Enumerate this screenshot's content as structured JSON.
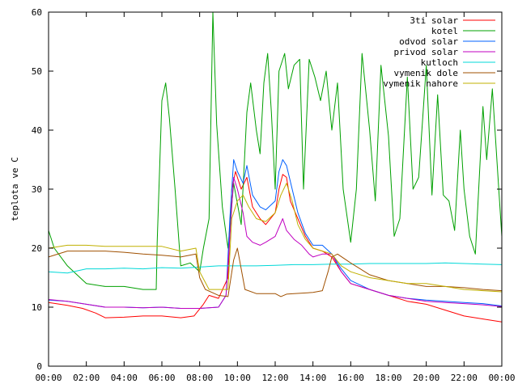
{
  "chart_data": {
    "type": "line",
    "title": "",
    "xlabel": "",
    "ylabel": "teplota ve C",
    "xlim": [
      0,
      24
    ],
    "ylim": [
      0,
      60
    ],
    "x_ticks": [
      "00:00",
      "02:00",
      "04:00",
      "06:00",
      "08:00",
      "10:00",
      "12:00",
      "14:00",
      "16:00",
      "18:00",
      "20:00",
      "22:00",
      "00:00"
    ],
    "y_ticks": [
      "0",
      "10",
      "20",
      "30",
      "40",
      "50",
      "60"
    ],
    "grid": false,
    "legend_position": "top-right",
    "series": [
      {
        "name": "3ti solar",
        "color": "#ff0000",
        "points": [
          [
            0,
            10.8
          ],
          [
            1,
            10.3
          ],
          [
            1.8,
            9.8
          ],
          [
            2.5,
            9.0
          ],
          [
            3,
            8.2
          ],
          [
            4,
            8.3
          ],
          [
            5,
            8.5
          ],
          [
            6,
            8.5
          ],
          [
            7,
            8.2
          ],
          [
            7.7,
            8.5
          ],
          [
            8.2,
            10.5
          ],
          [
            8.5,
            12.0
          ],
          [
            9,
            11.5
          ],
          [
            9.5,
            15
          ],
          [
            9.7,
            30
          ],
          [
            9.9,
            33
          ],
          [
            10.2,
            30
          ],
          [
            10.5,
            32
          ],
          [
            10.8,
            27
          ],
          [
            11.2,
            25
          ],
          [
            11.5,
            24
          ],
          [
            12,
            26
          ],
          [
            12.2,
            30
          ],
          [
            12.4,
            32.5
          ],
          [
            12.6,
            32
          ],
          [
            12.8,
            28
          ],
          [
            13.2,
            25
          ],
          [
            13.6,
            22
          ],
          [
            14,
            20
          ],
          [
            14.5,
            19.5
          ],
          [
            15,
            18.5
          ],
          [
            15.5,
            16
          ],
          [
            16,
            14
          ],
          [
            17,
            13
          ],
          [
            18,
            12
          ],
          [
            19,
            11
          ],
          [
            20,
            10.5
          ],
          [
            21,
            9.5
          ],
          [
            22,
            8.5
          ],
          [
            23,
            8
          ],
          [
            24,
            7.5
          ]
        ]
      },
      {
        "name": "kotel",
        "color": "#00a000",
        "points": [
          [
            0,
            23
          ],
          [
            0.3,
            20
          ],
          [
            1,
            17
          ],
          [
            2,
            14
          ],
          [
            3,
            13.5
          ],
          [
            4,
            13.5
          ],
          [
            5,
            13
          ],
          [
            5.7,
            13
          ],
          [
            5.75,
            21
          ],
          [
            6,
            45
          ],
          [
            6.2,
            48
          ],
          [
            6.4,
            42
          ],
          [
            6.7,
            30
          ],
          [
            7,
            17
          ],
          [
            7.5,
            17.5
          ],
          [
            8,
            16
          ],
          [
            8.2,
            20
          ],
          [
            8.5,
            25
          ],
          [
            8.7,
            60
          ],
          [
            8.9,
            41
          ],
          [
            9.2,
            27
          ],
          [
            9.5,
            20
          ],
          [
            9.8,
            31
          ],
          [
            10.2,
            24
          ],
          [
            10.5,
            43
          ],
          [
            10.7,
            48
          ],
          [
            11,
            40
          ],
          [
            11.2,
            36
          ],
          [
            11.4,
            48
          ],
          [
            11.6,
            53
          ],
          [
            11.8,
            43
          ],
          [
            12,
            30
          ],
          [
            12.2,
            50
          ],
          [
            12.5,
            53
          ],
          [
            12.7,
            47
          ],
          [
            13,
            51
          ],
          [
            13.3,
            52
          ],
          [
            13.5,
            30
          ],
          [
            13.8,
            52
          ],
          [
            14.1,
            49
          ],
          [
            14.4,
            45
          ],
          [
            14.7,
            50
          ],
          [
            15,
            40
          ],
          [
            15.3,
            48
          ],
          [
            15.6,
            30
          ],
          [
            16,
            21
          ],
          [
            16.3,
            30
          ],
          [
            16.6,
            53
          ],
          [
            17,
            40
          ],
          [
            17.3,
            28
          ],
          [
            17.6,
            51
          ],
          [
            18,
            39
          ],
          [
            18.3,
            22
          ],
          [
            18.6,
            25
          ],
          [
            19,
            49
          ],
          [
            19.3,
            30
          ],
          [
            19.6,
            32
          ],
          [
            20,
            51
          ],
          [
            20.3,
            29
          ],
          [
            20.6,
            46
          ],
          [
            20.9,
            29
          ],
          [
            21.2,
            28
          ],
          [
            21.5,
            23
          ],
          [
            21.8,
            40
          ],
          [
            22,
            30
          ],
          [
            22.3,
            22
          ],
          [
            22.6,
            19
          ],
          [
            23,
            44
          ],
          [
            23.2,
            35
          ],
          [
            23.5,
            47
          ],
          [
            23.8,
            32
          ],
          [
            24,
            22
          ]
        ]
      },
      {
        "name": "odvod solar",
        "color": "#0060ff",
        "points": [
          [
            0,
            11.2
          ],
          [
            1,
            11.0
          ],
          [
            2,
            10.5
          ],
          [
            3,
            10.0
          ],
          [
            4,
            10.0
          ],
          [
            5,
            9.9
          ],
          [
            6,
            10.0
          ],
          [
            7,
            9.8
          ],
          [
            8,
            9.8
          ],
          [
            9,
            10.0
          ],
          [
            9.4,
            12
          ],
          [
            9.6,
            25
          ],
          [
            9.8,
            35
          ],
          [
            10,
            33
          ],
          [
            10.3,
            31
          ],
          [
            10.5,
            34
          ],
          [
            10.8,
            29
          ],
          [
            11.2,
            27
          ],
          [
            11.5,
            26.5
          ],
          [
            12,
            28
          ],
          [
            12.2,
            33
          ],
          [
            12.4,
            35
          ],
          [
            12.6,
            34
          ],
          [
            12.9,
            30
          ],
          [
            13.2,
            26
          ],
          [
            13.6,
            22.5
          ],
          [
            14,
            20.5
          ],
          [
            14.5,
            20.5
          ],
          [
            15,
            19
          ],
          [
            15.5,
            16.5
          ],
          [
            16,
            14.5
          ],
          [
            17,
            13
          ],
          [
            18,
            12
          ],
          [
            19,
            11.5
          ],
          [
            20,
            11.2
          ],
          [
            21,
            11
          ],
          [
            22,
            10.8
          ],
          [
            23,
            10.6
          ],
          [
            24,
            10.2
          ]
        ]
      },
      {
        "name": "privod solar",
        "color": "#c000c0",
        "points": [
          [
            0,
            11.3
          ],
          [
            1,
            11.0
          ],
          [
            2,
            10.5
          ],
          [
            3,
            10.0
          ],
          [
            4,
            10.0
          ],
          [
            5,
            9.9
          ],
          [
            6,
            10.0
          ],
          [
            7,
            9.8
          ],
          [
            8,
            9.8
          ],
          [
            9,
            10.0
          ],
          [
            9.4,
            12
          ],
          [
            9.6,
            22
          ],
          [
            9.8,
            32
          ],
          [
            10,
            30
          ],
          [
            10.3,
            26
          ],
          [
            10.5,
            22
          ],
          [
            10.8,
            21
          ],
          [
            11.2,
            20.5
          ],
          [
            11.5,
            21
          ],
          [
            12,
            22
          ],
          [
            12.4,
            25
          ],
          [
            12.6,
            23
          ],
          [
            13,
            21.5
          ],
          [
            13.4,
            20.5
          ],
          [
            13.8,
            19
          ],
          [
            14,
            18.5
          ],
          [
            14.5,
            19
          ],
          [
            15,
            19
          ],
          [
            15.5,
            16
          ],
          [
            16,
            14
          ],
          [
            17,
            13
          ],
          [
            18,
            12
          ],
          [
            19,
            11.5
          ],
          [
            20,
            11
          ],
          [
            21,
            10.8
          ],
          [
            22,
            10.6
          ],
          [
            23,
            10.4
          ],
          [
            24,
            10.1
          ]
        ]
      },
      {
        "name": "kutloch",
        "color": "#00d8d8",
        "points": [
          [
            0,
            16
          ],
          [
            1,
            15.8
          ],
          [
            2,
            16.5
          ],
          [
            3,
            16.5
          ],
          [
            4,
            16.6
          ],
          [
            5,
            16.5
          ],
          [
            6,
            16.7
          ],
          [
            7,
            16.6
          ],
          [
            8,
            16.8
          ],
          [
            9,
            17
          ],
          [
            10,
            17
          ],
          [
            11,
            17
          ],
          [
            12,
            17.1
          ],
          [
            13,
            17.2
          ],
          [
            14,
            17.2
          ],
          [
            15,
            17.3
          ],
          [
            16,
            17.3
          ],
          [
            17,
            17.4
          ],
          [
            18,
            17.4
          ],
          [
            19,
            17.4
          ],
          [
            20,
            17.4
          ],
          [
            21,
            17.5
          ],
          [
            22,
            17.4
          ],
          [
            23,
            17.3
          ],
          [
            24,
            17.2
          ]
        ]
      },
      {
        "name": "vymenik dole",
        "color": "#a05000",
        "points": [
          [
            0,
            18.5
          ],
          [
            1,
            19.5
          ],
          [
            2,
            19.5
          ],
          [
            3,
            19.5
          ],
          [
            4,
            19.3
          ],
          [
            5,
            19.0
          ],
          [
            6,
            18.8
          ],
          [
            7,
            18.5
          ],
          [
            7.8,
            19
          ],
          [
            8,
            15
          ],
          [
            8.3,
            13
          ],
          [
            9,
            12
          ],
          [
            9.5,
            11.8
          ],
          [
            9.8,
            18
          ],
          [
            10,
            20
          ],
          [
            10.4,
            13
          ],
          [
            11,
            12.3
          ],
          [
            12,
            12.3
          ],
          [
            12.3,
            11.8
          ],
          [
            12.6,
            12.2
          ],
          [
            13,
            12.3
          ],
          [
            14,
            12.5
          ],
          [
            14.5,
            12.8
          ],
          [
            14.8,
            16
          ],
          [
            15,
            18.5
          ],
          [
            15.3,
            19
          ],
          [
            16,
            17.5
          ],
          [
            16.5,
            16.5
          ],
          [
            17,
            15.5
          ],
          [
            18,
            14.5
          ],
          [
            19,
            14
          ],
          [
            20,
            13.5
          ],
          [
            21,
            13.5
          ],
          [
            22,
            13.3
          ],
          [
            23,
            13
          ],
          [
            24,
            12.8
          ]
        ]
      },
      {
        "name": "vymenik nahore",
        "color": "#c0b000",
        "points": [
          [
            0,
            20
          ],
          [
            1,
            20.5
          ],
          [
            2,
            20.5
          ],
          [
            3,
            20.3
          ],
          [
            4,
            20.3
          ],
          [
            5,
            20.3
          ],
          [
            6,
            20.3
          ],
          [
            7,
            19.5
          ],
          [
            7.8,
            20
          ],
          [
            8,
            16
          ],
          [
            8.5,
            13
          ],
          [
            9,
            13
          ],
          [
            9.5,
            13
          ],
          [
            9.7,
            25
          ],
          [
            10,
            28
          ],
          [
            10.3,
            29
          ],
          [
            10.6,
            27
          ],
          [
            11,
            25
          ],
          [
            11.5,
            24.5
          ],
          [
            12,
            26
          ],
          [
            12.3,
            29
          ],
          [
            12.6,
            31
          ],
          [
            12.9,
            28
          ],
          [
            13.2,
            24
          ],
          [
            13.6,
            21.5
          ],
          [
            14,
            20
          ],
          [
            14.5,
            19.5
          ],
          [
            15,
            19
          ],
          [
            15.5,
            17
          ],
          [
            16,
            16
          ],
          [
            17,
            15
          ],
          [
            18,
            14.5
          ],
          [
            19,
            14
          ],
          [
            20,
            14
          ],
          [
            21,
            13.5
          ],
          [
            22,
            13
          ],
          [
            23,
            12.8
          ],
          [
            24,
            12.6
          ]
        ]
      }
    ]
  }
}
